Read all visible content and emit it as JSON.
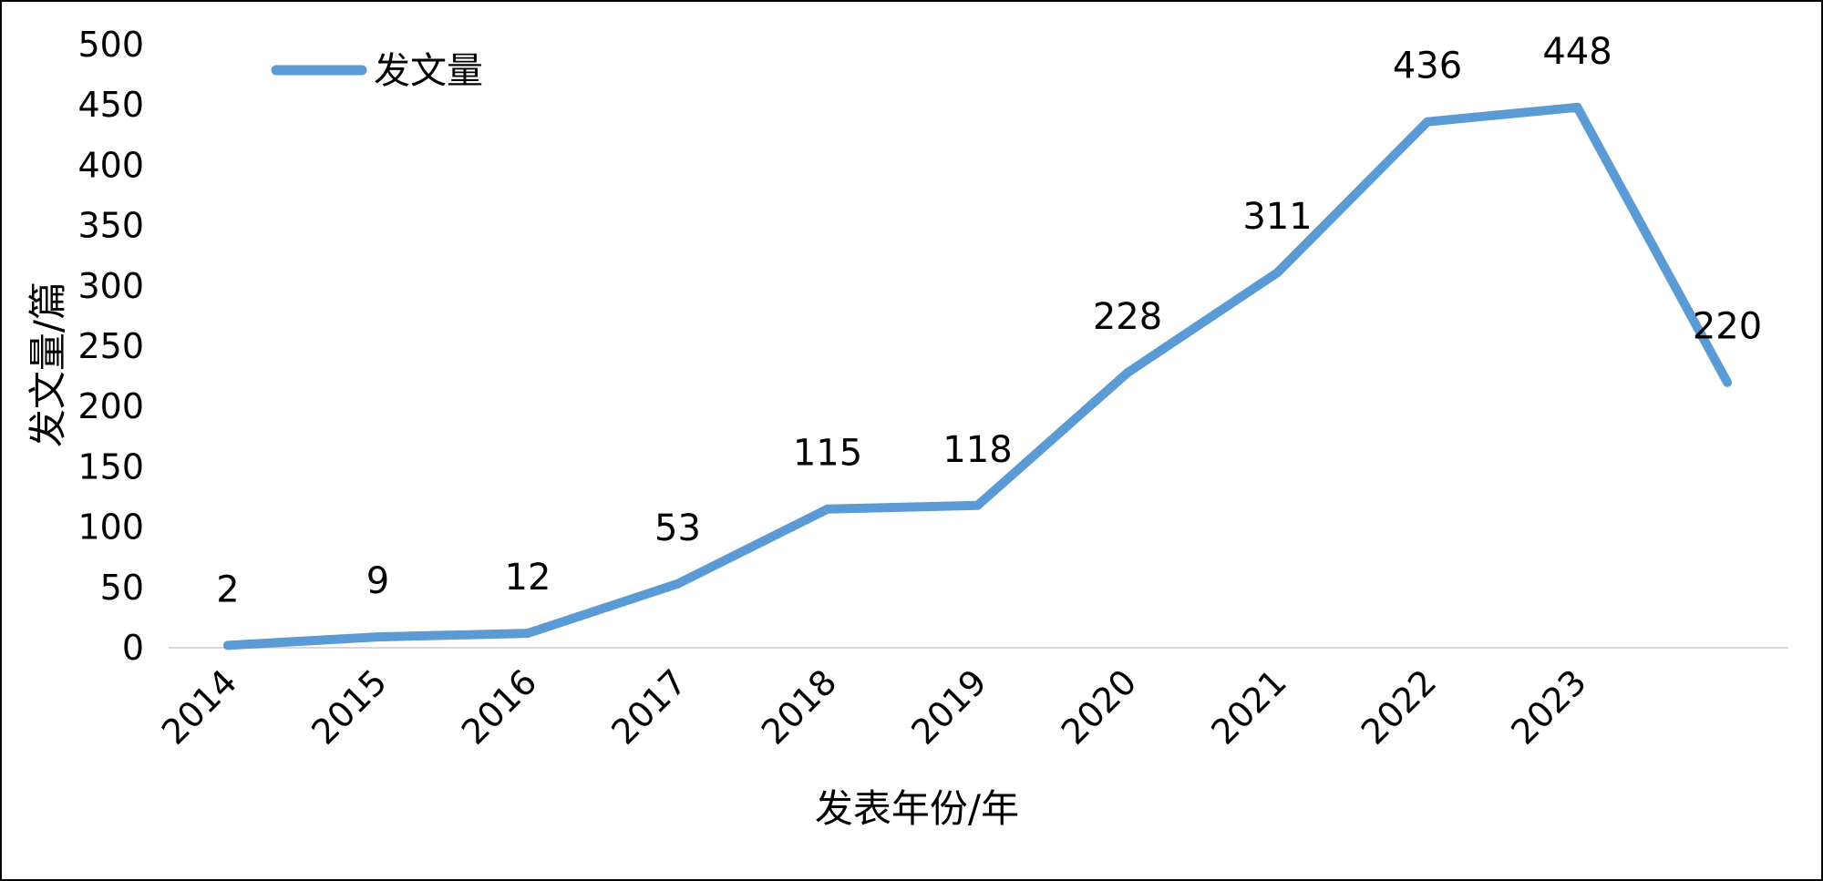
{
  "chart_data": {
    "type": "line",
    "categories": [
      "2014",
      "2015",
      "2016",
      "2017",
      "2018",
      "2019",
      "2020",
      "2021",
      "2022",
      "2023",
      ""
    ],
    "series": [
      {
        "name": "发文量",
        "values": [
          2,
          9,
          12,
          53,
          115,
          118,
          228,
          311,
          436,
          448,
          220
        ],
        "color": "#5B9BD5"
      }
    ],
    "xlabel": "发表年份/年",
    "ylabel": "发文量/篇",
    "ylim": [
      0,
      500
    ],
    "yticks": [
      0,
      50,
      100,
      150,
      200,
      250,
      300,
      350,
      400,
      450,
      500
    ],
    "grid": false,
    "legend": "top-left",
    "data_labels": true
  }
}
